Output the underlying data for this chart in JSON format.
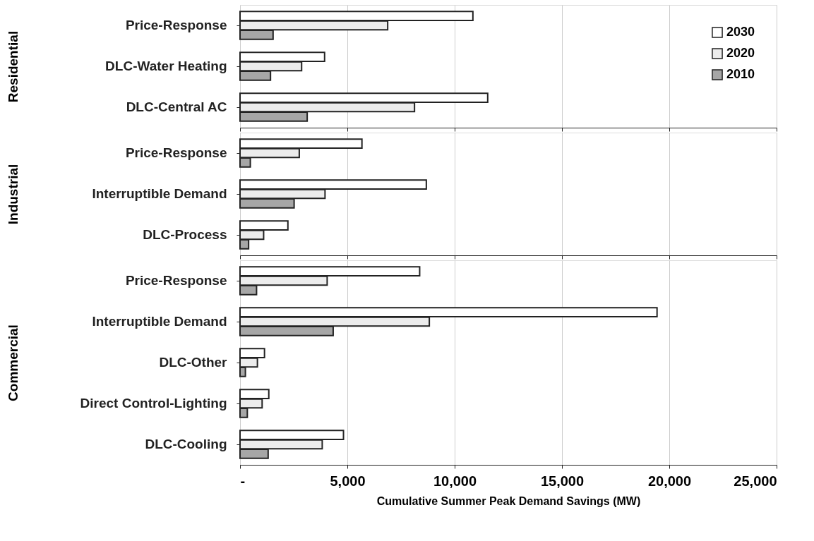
{
  "chart_data": [
    {
      "type": "bar",
      "orientation": "horizontal",
      "ylabel": "Residential",
      "categories": [
        "Price-Response",
        "DLC-Water Heating",
        "DLC-Central AC"
      ],
      "series": [
        {
          "name": "2030",
          "color": "#ffffff",
          "values": [
            10850,
            3940,
            11540
          ]
        },
        {
          "name": "2020",
          "color": "#ececec",
          "values": [
            6880,
            2870,
            8130
          ]
        },
        {
          "name": "2010",
          "color": "#a6a6a6",
          "values": [
            1540,
            1420,
            3130
          ]
        }
      ],
      "xlim": [
        0,
        25000
      ],
      "grid": "x",
      "legend": "top right",
      "tick_labels": "y"
    },
    {
      "type": "bar",
      "orientation": "horizontal",
      "ylabel": "Industrial",
      "categories": [
        "Price-Response",
        "Interruptible Demand",
        "DLC-Process"
      ],
      "series": [
        {
          "name": "2030",
          "color": "#ffffff",
          "values": [
            5680,
            8680,
            2230
          ]
        },
        {
          "name": "2020",
          "color": "#ececec",
          "values": [
            2760,
            3960,
            1100
          ]
        },
        {
          "name": "2010",
          "color": "#a6a6a6",
          "values": [
            480,
            2520,
            400
          ]
        }
      ],
      "xlim": [
        0,
        25000
      ],
      "grid": "x",
      "legend": false,
      "tick_labels": "y"
    },
    {
      "type": "bar",
      "orientation": "horizontal",
      "ylabel": "Commercial",
      "xlabel": "Cumulative Summer Peak Demand Savings (MW)",
      "categories": [
        "Price-Response",
        "Interruptible Demand",
        "DLC-Other",
        "Direct Control-Lighting",
        "DLC-Cooling"
      ],
      "series": [
        {
          "name": "2030",
          "color": "#ffffff",
          "values": [
            8370,
            19430,
            1140,
            1340,
            4820
          ]
        },
        {
          "name": "2020",
          "color": "#ececec",
          "values": [
            4060,
            8820,
            810,
            1030,
            3830
          ]
        },
        {
          "name": "2010",
          "color": "#a6a6a6",
          "values": [
            770,
            4340,
            250,
            340,
            1310
          ]
        }
      ],
      "xlim": [
        0,
        25000
      ],
      "xticks": [
        {
          "value": 0,
          "label": "-"
        },
        {
          "value": 5000,
          "label": "5,000"
        },
        {
          "value": 10000,
          "label": "10,000"
        },
        {
          "value": 15000,
          "label": "15,000"
        },
        {
          "value": 20000,
          "label": "20,000"
        },
        {
          "value": 25000,
          "label": "25,000"
        }
      ],
      "grid": "x",
      "legend": false
    }
  ]
}
